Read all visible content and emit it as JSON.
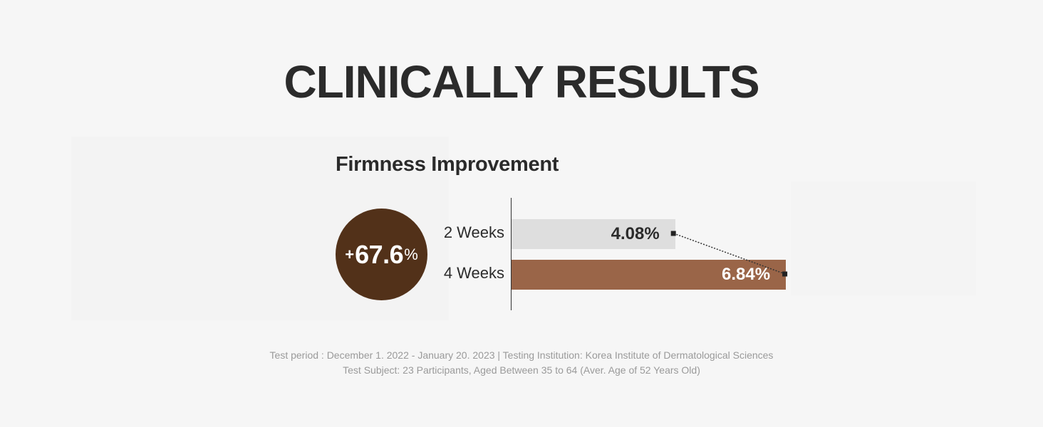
{
  "page": {
    "title": "CLINICALLY RESULTS"
  },
  "badge": {
    "sign": "+",
    "value": "67.6",
    "unit": "%",
    "color": "#523119"
  },
  "chart_data": {
    "type": "bar",
    "orientation": "horizontal",
    "title": "Firmness Improvement",
    "categories": [
      "2 Weeks",
      "4 Weeks"
    ],
    "values": [
      4.08,
      6.84
    ],
    "value_labels": [
      "4.08%",
      "6.84%"
    ],
    "xlim": [
      0,
      7
    ],
    "colors": [
      "#dedede",
      "#9a6548"
    ],
    "label_colors": [
      "#2b2b2b",
      "#ffffff"
    ],
    "connector": "dotted",
    "grid": false,
    "legend": "none"
  },
  "notes": {
    "line1": "Test period : December 1. 2022 - January 20. 2023 | Testing Institution: Korea Institute of Dermatological Sciences",
    "line2": "Test Subject: 23 Participants, Aged Between 35 to 64 (Aver. Age of 52 Years Old)"
  }
}
